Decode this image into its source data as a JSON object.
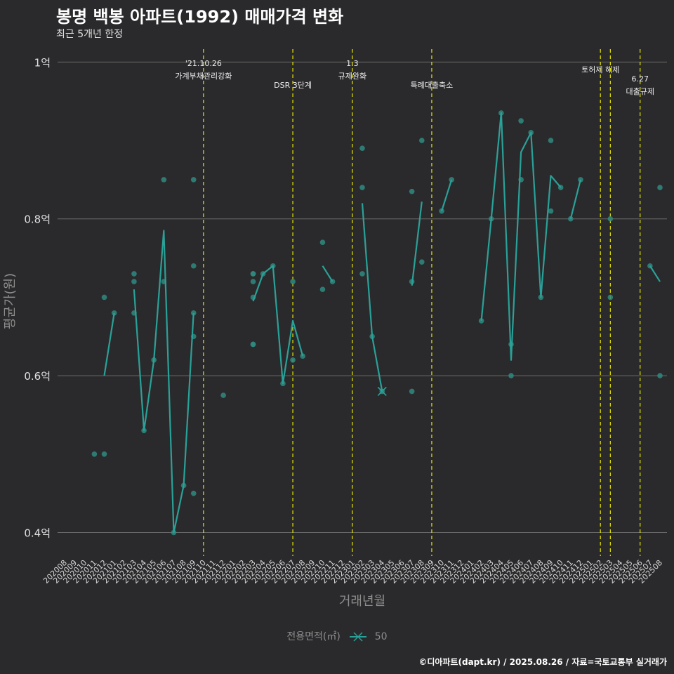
{
  "header": {
    "title": "봉명 백봉 아파트(1992) 매매가격 변화",
    "subtitle": "최근 5개년 한정"
  },
  "caption": "©디아파트(dapt.kr) / 2025.08.26 / 자료=국토교통부 실거래가",
  "legend": {
    "label": "전용면적(㎡)",
    "value": "50"
  },
  "colors": {
    "background": "#2a2a2c",
    "line": "#2aa198",
    "points": "#2f8a80",
    "event_line": "#e6e600",
    "grid": "#6a6a6a"
  },
  "chart_data": {
    "type": "line",
    "title": "봉명 백봉 아파트(1992) 매매가격 변화",
    "xlabel": "거래년월",
    "ylabel": "평균가(원)",
    "ylim": [
      0.37,
      1.02
    ],
    "yticks": [
      0.4,
      0.6,
      0.8,
      1.0
    ],
    "ytick_labels": [
      "0.4억",
      "0.6억",
      "0.8억",
      "1억"
    ],
    "categories": [
      "202008",
      "202009",
      "202010",
      "202011",
      "202012",
      "202101",
      "202102",
      "202103",
      "202104",
      "202105",
      "202106",
      "202107",
      "202108",
      "202109",
      "202110",
      "202111",
      "202112",
      "202201",
      "202202",
      "202203",
      "202204",
      "202205",
      "202206",
      "202207",
      "202208",
      "202209",
      "202210",
      "202211",
      "202212",
      "202301",
      "202302",
      "202303",
      "202304",
      "202305",
      "202306",
      "202307",
      "202308",
      "202309",
      "202310",
      "202311",
      "202312",
      "202401",
      "202402",
      "202403",
      "202404",
      "202405",
      "202406",
      "202407",
      "202408",
      "202409",
      "202410",
      "202411",
      "202412",
      "202501",
      "202502",
      "202503",
      "202504",
      "202505",
      "202506",
      "202507",
      "202508"
    ],
    "series": [
      {
        "name": "50",
        "segments": [
          [
            [
              "202012",
              0.6
            ],
            [
              "202101",
              0.68
            ]
          ],
          [
            [
              "202103",
              0.71
            ],
            [
              "202104",
              0.53
            ],
            [
              "202105",
              0.62
            ],
            [
              "202106",
              0.785
            ],
            [
              "202107",
              0.4
            ],
            [
              "202108",
              0.46
            ],
            [
              "202109",
              0.68
            ]
          ],
          [
            [
              "202203",
              0.695
            ],
            [
              "202204",
              0.73
            ],
            [
              "202205",
              0.74
            ],
            [
              "202206",
              0.59
            ],
            [
              "202207",
              0.67
            ],
            [
              "202208",
              0.625
            ]
          ],
          [
            [
              "202210",
              0.74
            ],
            [
              "202211",
              0.72
            ]
          ],
          [
            [
              "202302",
              0.82
            ],
            [
              "202303",
              0.65
            ],
            [
              "202304",
              0.58
            ]
          ],
          [
            [
              "202307",
              0.715
            ],
            [
              "202308",
              0.822
            ]
          ],
          [
            [
              "202310",
              0.81
            ],
            [
              "202311",
              0.85
            ]
          ],
          [
            [
              "202402",
              0.67
            ],
            [
              "202403",
              0.8
            ],
            [
              "202404",
              0.935
            ],
            [
              "202405",
              0.62
            ],
            [
              "202406",
              0.885
            ],
            [
              "202407",
              0.91
            ],
            [
              "202408",
              0.7
            ],
            [
              "202409",
              0.855
            ],
            [
              "202410",
              0.84
            ]
          ],
          [
            [
              "202411",
              0.8
            ],
            [
              "202412",
              0.85
            ]
          ],
          [
            [
              "202507",
              0.74
            ],
            [
              "202508",
              0.72
            ]
          ]
        ]
      }
    ],
    "points": [
      [
        "202011",
        0.5
      ],
      [
        "202012",
        0.7
      ],
      [
        "202012",
        0.5
      ],
      [
        "202101",
        0.68
      ],
      [
        "202103",
        0.73
      ],
      [
        "202103",
        0.72
      ],
      [
        "202103",
        0.68
      ],
      [
        "202104",
        0.53
      ],
      [
        "202105",
        0.62
      ],
      [
        "202106",
        0.85
      ],
      [
        "202106",
        0.72
      ],
      [
        "202107",
        0.4
      ],
      [
        "202108",
        0.46
      ],
      [
        "202109",
        0.85
      ],
      [
        "202109",
        0.74
      ],
      [
        "202109",
        0.68
      ],
      [
        "202109",
        0.65
      ],
      [
        "202109",
        0.45
      ],
      [
        "202112",
        0.575
      ],
      [
        "202203",
        0.73
      ],
      [
        "202203",
        0.73
      ],
      [
        "202203",
        0.72
      ],
      [
        "202203",
        0.7
      ],
      [
        "202203",
        0.64
      ],
      [
        "202203",
        0.64
      ],
      [
        "202204",
        0.73
      ],
      [
        "202205",
        0.74
      ],
      [
        "202206",
        0.59
      ],
      [
        "202207",
        0.72
      ],
      [
        "202207",
        0.62
      ],
      [
        "202208",
        0.625
      ],
      [
        "202210",
        0.77
      ],
      [
        "202210",
        0.71
      ],
      [
        "202211",
        0.72
      ],
      [
        "202302",
        0.89
      ],
      [
        "202302",
        0.84
      ],
      [
        "202302",
        0.73
      ],
      [
        "202303",
        0.65
      ],
      [
        "202304",
        0.58
      ],
      [
        "202307",
        0.835
      ],
      [
        "202307",
        0.72
      ],
      [
        "202307",
        0.58
      ],
      [
        "202308",
        0.9
      ],
      [
        "202308",
        0.745
      ],
      [
        "202310",
        0.81
      ],
      [
        "202311",
        0.85
      ],
      [
        "202402",
        0.67
      ],
      [
        "202403",
        0.8
      ],
      [
        "202404",
        0.935
      ],
      [
        "202405",
        0.64
      ],
      [
        "202405",
        0.6
      ],
      [
        "202406",
        0.925
      ],
      [
        "202406",
        0.85
      ],
      [
        "202407",
        0.91
      ],
      [
        "202408",
        0.7
      ],
      [
        "202409",
        0.9
      ],
      [
        "202409",
        0.81
      ],
      [
        "202410",
        0.84
      ],
      [
        "202411",
        0.8
      ],
      [
        "202412",
        0.85
      ],
      [
        "202503",
        0.8
      ],
      [
        "202503",
        0.7
      ],
      [
        "202507",
        0.74
      ],
      [
        "202508",
        0.84
      ],
      [
        "202508",
        0.6
      ]
    ],
    "highlight_point": [
      "202304",
      0.58
    ],
    "annotations": [
      {
        "x": 14.0,
        "lines": [
          "'21.10.26",
          "가계부채관리강화"
        ]
      },
      {
        "x": 23.0,
        "lines": [
          "DSR 3단계"
        ]
      },
      {
        "x": 29.0,
        "lines": [
          "1.3",
          "규제완화"
        ]
      },
      {
        "x": 37.0,
        "lines": [
          "특례대출축소"
        ]
      },
      {
        "x": 54.0,
        "lines": [
          "토허제 해제"
        ]
      },
      {
        "x": 55.0,
        "lines": []
      },
      {
        "x": 58.0,
        "lines": [
          "6.27",
          "대출규제"
        ]
      }
    ]
  }
}
